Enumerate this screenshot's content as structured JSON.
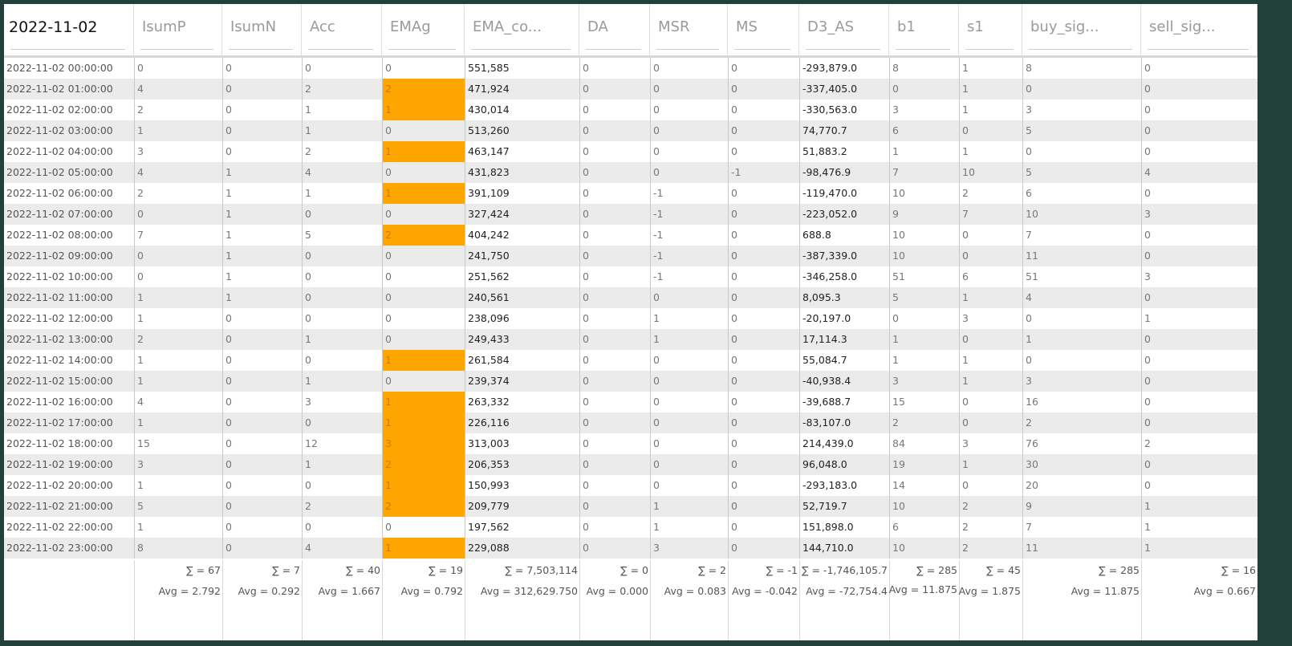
{
  "table": {
    "columns": [
      "2022-11-02",
      "IsumP",
      "IsumN",
      "Acc",
      "EMAg",
      "EMA_co...",
      "DA",
      "MSR",
      "MS",
      "D3_AS",
      "b1",
      "s1",
      "buy_sig...",
      "sell_sig..."
    ],
    "sorted_column_icon": "sort-updown-icon",
    "highlight_color": "#ffa500",
    "rows": [
      [
        "2022-11-02 00:00:00",
        "0",
        "0",
        "0",
        "0",
        "551,585",
        "0",
        "0",
        "0",
        "-293,879.0",
        "8",
        "1",
        "8",
        "0"
      ],
      [
        "2022-11-02 01:00:00",
        "4",
        "0",
        "2",
        "2",
        "471,924",
        "0",
        "0",
        "0",
        "-337,405.0",
        "0",
        "1",
        "0",
        "0"
      ],
      [
        "2022-11-02 02:00:00",
        "2",
        "0",
        "1",
        "1",
        "430,014",
        "0",
        "0",
        "0",
        "-330,563.0",
        "3",
        "1",
        "3",
        "0"
      ],
      [
        "2022-11-02 03:00:00",
        "1",
        "0",
        "1",
        "0",
        "513,260",
        "0",
        "0",
        "0",
        "74,770.7",
        "6",
        "0",
        "5",
        "0"
      ],
      [
        "2022-11-02 04:00:00",
        "3",
        "0",
        "2",
        "1",
        "463,147",
        "0",
        "0",
        "0",
        "51,883.2",
        "1",
        "1",
        "0",
        "0"
      ],
      [
        "2022-11-02 05:00:00",
        "4",
        "1",
        "4",
        "0",
        "431,823",
        "0",
        "0",
        "-1",
        "-98,476.9",
        "7",
        "10",
        "5",
        "4"
      ],
      [
        "2022-11-02 06:00:00",
        "2",
        "1",
        "1",
        "1",
        "391,109",
        "0",
        "-1",
        "0",
        "-119,470.0",
        "10",
        "2",
        "6",
        "0"
      ],
      [
        "2022-11-02 07:00:00",
        "0",
        "1",
        "0",
        "0",
        "327,424",
        "0",
        "-1",
        "0",
        "-223,052.0",
        "9",
        "7",
        "10",
        "3"
      ],
      [
        "2022-11-02 08:00:00",
        "7",
        "1",
        "5",
        "2",
        "404,242",
        "0",
        "-1",
        "0",
        "688.8",
        "10",
        "0",
        "7",
        "0"
      ],
      [
        "2022-11-02 09:00:00",
        "0",
        "1",
        "0",
        "0",
        "241,750",
        "0",
        "-1",
        "0",
        "-387,339.0",
        "10",
        "0",
        "11",
        "0"
      ],
      [
        "2022-11-02 10:00:00",
        "0",
        "1",
        "0",
        "0",
        "251,562",
        "0",
        "-1",
        "0",
        "-346,258.0",
        "51",
        "6",
        "51",
        "3"
      ],
      [
        "2022-11-02 11:00:00",
        "1",
        "1",
        "0",
        "0",
        "240,561",
        "0",
        "0",
        "0",
        "8,095.3",
        "5",
        "1",
        "4",
        "0"
      ],
      [
        "2022-11-02 12:00:00",
        "1",
        "0",
        "0",
        "0",
        "238,096",
        "0",
        "1",
        "0",
        "-20,197.0",
        "0",
        "3",
        "0",
        "1"
      ],
      [
        "2022-11-02 13:00:00",
        "2",
        "0",
        "1",
        "0",
        "249,433",
        "0",
        "1",
        "0",
        "17,114.3",
        "1",
        "0",
        "1",
        "0"
      ],
      [
        "2022-11-02 14:00:00",
        "1",
        "0",
        "0",
        "1",
        "261,584",
        "0",
        "0",
        "0",
        "55,084.7",
        "1",
        "1",
        "0",
        "0"
      ],
      [
        "2022-11-02 15:00:00",
        "1",
        "0",
        "1",
        "0",
        "239,374",
        "0",
        "0",
        "0",
        "-40,938.4",
        "3",
        "1",
        "3",
        "0"
      ],
      [
        "2022-11-02 16:00:00",
        "4",
        "0",
        "3",
        "1",
        "263,332",
        "0",
        "0",
        "0",
        "-39,688.7",
        "15",
        "0",
        "16",
        "0"
      ],
      [
        "2022-11-02 17:00:00",
        "1",
        "0",
        "0",
        "1",
        "226,116",
        "0",
        "0",
        "0",
        "-83,107.0",
        "2",
        "0",
        "2",
        "0"
      ],
      [
        "2022-11-02 18:00:00",
        "15",
        "0",
        "12",
        "3",
        "313,003",
        "0",
        "0",
        "0",
        "214,439.0",
        "84",
        "3",
        "76",
        "2"
      ],
      [
        "2022-11-02 19:00:00",
        "3",
        "0",
        "1",
        "2",
        "206,353",
        "0",
        "0",
        "0",
        "96,048.0",
        "19",
        "1",
        "30",
        "0"
      ],
      [
        "2022-11-02 20:00:00",
        "1",
        "0",
        "0",
        "1",
        "150,993",
        "0",
        "0",
        "0",
        "-293,183.0",
        "14",
        "0",
        "20",
        "0"
      ],
      [
        "2022-11-02 21:00:00",
        "5",
        "0",
        "2",
        "2",
        "209,779",
        "0",
        "1",
        "0",
        "52,719.7",
        "10",
        "2",
        "9",
        "1"
      ],
      [
        "2022-11-02 22:00:00",
        "1",
        "0",
        "0",
        "0",
        "197,562",
        "0",
        "1",
        "0",
        "151,898.0",
        "6",
        "2",
        "7",
        "1"
      ],
      [
        "2022-11-02 23:00:00",
        "8",
        "0",
        "4",
        "1",
        "229,088",
        "0",
        "3",
        "0",
        "144,710.0",
        "10",
        "2",
        "11",
        "1"
      ]
    ],
    "footer_sums": [
      "",
      "∑ = 67",
      "∑ = 7",
      "∑ = 40",
      "∑ = 19",
      "∑ = 7,503,114",
      "∑ = 0",
      "∑ = 2",
      "∑ = -1",
      "∑ = -1,746,105.7",
      "∑ = 285",
      "∑ = 45",
      "∑ = 285",
      "∑ = 16"
    ],
    "footer_avgs": [
      "",
      "Avg = 2.792",
      "Avg = 0.292",
      "Avg = 1.667",
      "Avg = 0.792",
      "Avg = 312,629.750",
      "Avg = 0.000",
      "Avg = 0.083",
      "Avg = -0.042",
      "Avg = -72,754.4",
      "Avg = 11.875",
      "Avg = 1.875",
      "Avg = 11.875",
      "Avg = 0.667"
    ]
  }
}
